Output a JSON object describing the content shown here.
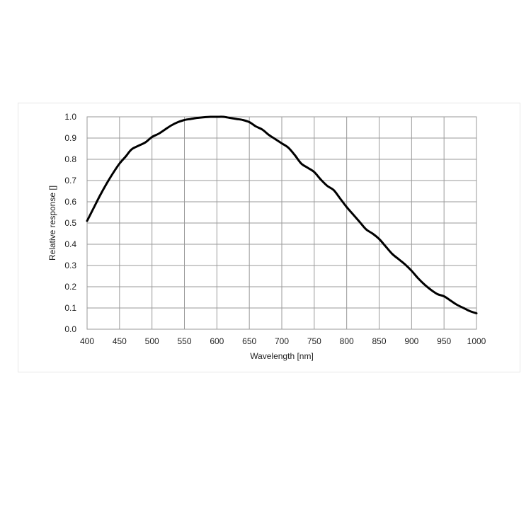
{
  "chart_data": {
    "type": "line",
    "xlabel": "Wavelength [nm]",
    "ylabel": "Relative response []",
    "xlim": [
      400,
      1000
    ],
    "ylim": [
      0.0,
      1.0
    ],
    "x_ticks": [
      "400",
      "450",
      "500",
      "550",
      "600",
      "650",
      "700",
      "750",
      "800",
      "850",
      "900",
      "950",
      "1000"
    ],
    "y_ticks": [
      "1.0",
      "0.9",
      "0.8",
      "0.7",
      "0.6",
      "0.5",
      "0.4",
      "0.3",
      "0.2",
      "0.1",
      "0.0"
    ],
    "x_tick_values": [
      400,
      450,
      500,
      550,
      600,
      650,
      700,
      750,
      800,
      850,
      900,
      950,
      1000
    ],
    "y_tick_values": [
      1.0,
      0.9,
      0.8,
      0.7,
      0.6,
      0.5,
      0.4,
      0.3,
      0.2,
      0.1,
      0.0
    ],
    "grid": true,
    "legend": "none",
    "line_color": "#000000",
    "series": [
      {
        "x": [
          400,
          410,
          420,
          430,
          440,
          450,
          460,
          465,
          470,
          480,
          490,
          500,
          510,
          520,
          530,
          540,
          550,
          560,
          570,
          580,
          590,
          600,
          610,
          620,
          630,
          640,
          650,
          660,
          670,
          680,
          690,
          700,
          710,
          720,
          730,
          740,
          750,
          760,
          770,
          780,
          790,
          800,
          810,
          820,
          830,
          840,
          850,
          860,
          870,
          880,
          890,
          900,
          910,
          920,
          930,
          940,
          950,
          960,
          970,
          980,
          990,
          1000
        ],
        "y": [
          0.51,
          0.57,
          0.63,
          0.685,
          0.735,
          0.78,
          0.815,
          0.835,
          0.85,
          0.865,
          0.88,
          0.905,
          0.92,
          0.94,
          0.96,
          0.975,
          0.985,
          0.99,
          0.995,
          0.998,
          1.0,
          1.0,
          1.0,
          0.995,
          0.99,
          0.985,
          0.975,
          0.955,
          0.94,
          0.915,
          0.895,
          0.875,
          0.855,
          0.82,
          0.78,
          0.76,
          0.74,
          0.705,
          0.675,
          0.655,
          0.615,
          0.575,
          0.54,
          0.505,
          0.47,
          0.45,
          0.425,
          0.39,
          0.355,
          0.33,
          0.305,
          0.275,
          0.24,
          0.21,
          0.185,
          0.165,
          0.155,
          0.135,
          0.115,
          0.1,
          0.085,
          0.075
        ]
      }
    ]
  }
}
